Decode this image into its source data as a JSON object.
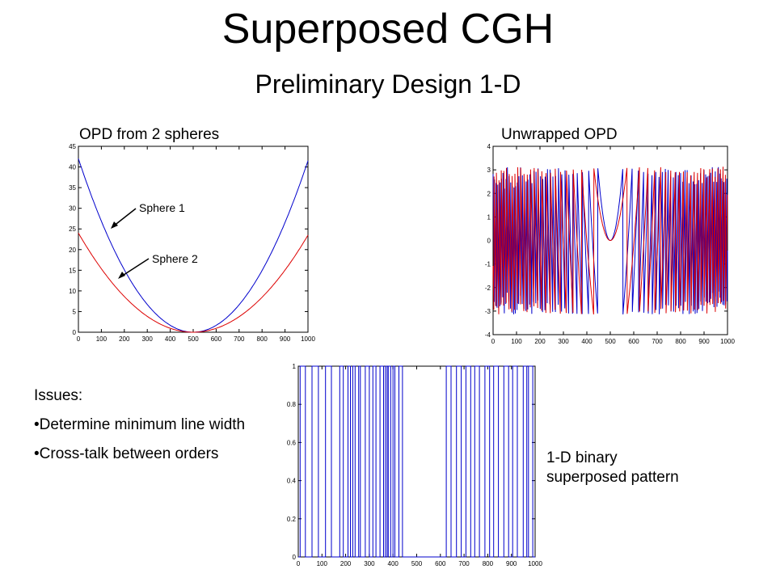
{
  "slide": {
    "title": "Superposed CGH",
    "subtitle": "Preliminary Design 1-D"
  },
  "issues": {
    "heading": "Issues:",
    "items": [
      "•Determine minimum line width",
      "•Cross-talk between orders"
    ]
  },
  "caption": {
    "line1": "1-D binary",
    "line2": "superposed pattern"
  },
  "colors": {
    "sphere1": "#0000cc",
    "sphere2": "#dd0000",
    "binary": "#0000cc"
  },
  "chart_data": [
    {
      "type": "line",
      "title": "OPD from 2 spheres",
      "xlim": [
        0,
        1000
      ],
      "ylim": [
        0,
        45
      ],
      "xticks": [
        0,
        100,
        200,
        300,
        400,
        500,
        600,
        700,
        800,
        900,
        1000
      ],
      "yticks": [
        0,
        5,
        10,
        15,
        20,
        25,
        30,
        35,
        40,
        45
      ],
      "series": [
        {
          "name": "Sphere 1",
          "vertex": 500,
          "a_left": 42,
          "a_right": 41.5,
          "color": "#0000cc"
        },
        {
          "name": "Sphere 2",
          "vertex": 500,
          "a_left": 24,
          "a_right": 23.5,
          "color": "#dd0000"
        }
      ],
      "annotations": [
        "Sphere 1",
        "Sphere 2"
      ]
    },
    {
      "type": "line",
      "title": "Unwrapped OPD",
      "xlim": [
        0,
        1000
      ],
      "ylim": [
        -4,
        4
      ],
      "xticks": [
        0,
        100,
        200,
        300,
        400,
        500,
        600,
        700,
        800,
        900,
        1000
      ],
      "yticks": [
        -4,
        -3,
        -2,
        -1,
        0,
        1,
        2,
        3,
        4
      ],
      "wrap_range": [
        -3.1416,
        3.1416
      ],
      "series": [
        {
          "name": "Sphere 1",
          "vertex": 500,
          "a_left": 42,
          "a_right": 41.5,
          "scale": 6.5,
          "color": "#0000cc"
        },
        {
          "name": "Sphere 2",
          "vertex": 500,
          "a_left": 24,
          "a_right": 23.5,
          "scale": 6.5,
          "color": "#dd0000"
        }
      ]
    },
    {
      "type": "line",
      "title": "",
      "xlim": [
        0,
        1000
      ],
      "ylim": [
        0,
        1
      ],
      "xticks": [
        0,
        100,
        200,
        300,
        400,
        500,
        600,
        700,
        800,
        900,
        1000
      ],
      "yticks": [
        0,
        0.2,
        0.4,
        0.6,
        0.8,
        1
      ],
      "high_intervals": [
        [
          8,
          30
        ],
        [
          58,
          85
        ],
        [
          115,
          140
        ],
        [
          175,
          190
        ],
        [
          210,
          220
        ],
        [
          230,
          240
        ],
        [
          255,
          262
        ],
        [
          283,
          300
        ],
        [
          315,
          328
        ],
        [
          345,
          360
        ],
        [
          368,
          375
        ],
        [
          380,
          390
        ],
        [
          400,
          408
        ],
        [
          425,
          440
        ],
        [
          625,
          645
        ],
        [
          668,
          688
        ],
        [
          708,
          728
        ],
        [
          745,
          765
        ],
        [
          788,
          808
        ],
        [
          825,
          845
        ],
        [
          868,
          888
        ],
        [
          905,
          925
        ],
        [
          950,
          965
        ],
        [
          972,
          990
        ]
      ]
    }
  ]
}
